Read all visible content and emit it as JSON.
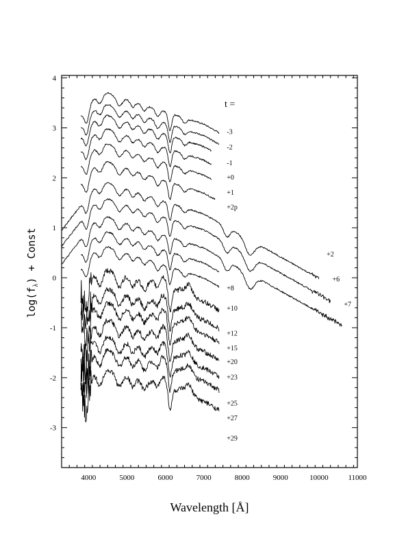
{
  "chart_data": {
    "type": "line",
    "xlabel": "Wavelength [Å]",
    "ylabel": "log(f",
    "ylabel_sub": "λ",
    "ylabel_tail": ") + Const",
    "xlim": [
      3300,
      11000
    ],
    "ylim": [
      -3.8,
      4.05
    ],
    "xticks": [
      4000,
      5000,
      6000,
      7000,
      8000,
      9000,
      10000,
      11000
    ],
    "yticks": [
      -3,
      -2,
      -1,
      0,
      1,
      2,
      3,
      4
    ],
    "xtick_labels": [
      "4000",
      "5000",
      "6000",
      "7000",
      "8000",
      "9000",
      "10000",
      "11000"
    ],
    "ytick_labels": [
      "-3",
      "-2",
      "-1",
      "0",
      "1",
      "2",
      "3",
      "4"
    ],
    "grid": false,
    "legend_header": "t =",
    "series": [
      {
        "name": "-3",
        "x_range": [
          3800,
          7400
        ],
        "offset": 3.0,
        "label_anchor": [
          7600,
          2.93
        ]
      },
      {
        "name": "-2",
        "x_range": [
          3800,
          7400
        ],
        "offset": 2.77,
        "label_anchor": [
          7600,
          2.62
        ]
      },
      {
        "name": "-1",
        "x_range": [
          3800,
          7200
        ],
        "offset": 2.55,
        "label_anchor": [
          7600,
          2.31
        ]
      },
      {
        "name": "+0",
        "x_range": [
          3800,
          7200
        ],
        "offset": 2.28,
        "label_anchor": [
          7600,
          2.02
        ]
      },
      {
        "name": "+1",
        "x_range": [
          3800,
          7200
        ],
        "offset": 1.98,
        "label_anchor": [
          7600,
          1.72
        ]
      },
      {
        "name": "+2p",
        "x_range": [
          3800,
          7300
        ],
        "offset": 1.62,
        "label_anchor": [
          7600,
          1.42
        ]
      },
      {
        "name": "+2",
        "x_range": [
          3300,
          10000
        ],
        "offset": 1.2,
        "label_anchor": [
          10200,
          0.48
        ]
      },
      {
        "name": "+6",
        "x_range": [
          3300,
          10300
        ],
        "offset": 0.88,
        "label_anchor": [
          10350,
          -0.02
        ]
      },
      {
        "name": "+7",
        "x_range": [
          3300,
          10600
        ],
        "offset": 0.52,
        "label_anchor": [
          10650,
          -0.52
        ]
      },
      {
        "name": "+8",
        "x_range": [
          3800,
          7400
        ],
        "offset": 0.22,
        "label_anchor": [
          7600,
          -0.2
        ]
      },
      {
        "name": "+10",
        "x_range": [
          3800,
          7400
        ],
        "offset": -0.08,
        "label_anchor": [
          7600,
          -0.6
        ]
      },
      {
        "name": "+12",
        "x_range": [
          3800,
          7400
        ],
        "offset": -0.55,
        "label_anchor": [
          7600,
          -1.1
        ]
      },
      {
        "name": "+15",
        "x_range": [
          3800,
          7400
        ],
        "offset": -0.92,
        "label_anchor": [
          7600,
          -1.4
        ]
      },
      {
        "name": "+20",
        "x_range": [
          3800,
          7400
        ],
        "offset": -1.2,
        "label_anchor": [
          7600,
          -1.67
        ]
      },
      {
        "name": "+23",
        "x_range": [
          3800,
          7400
        ],
        "offset": -1.55,
        "label_anchor": [
          7600,
          -1.98
        ]
      },
      {
        "name": "+25",
        "x_range": [
          3800,
          7400
        ],
        "offset": -1.88,
        "label_anchor": [
          7600,
          -2.5
        ]
      },
      {
        "name": "+27",
        "x_range": [
          3800,
          7400
        ],
        "offset": -2.15,
        "label_anchor": [
          7600,
          -2.8
        ]
      },
      {
        "name": "+29",
        "x_range": [
          3800,
          7400
        ],
        "offset": -2.55,
        "label_anchor": [
          7600,
          -3.2
        ]
      }
    ]
  }
}
